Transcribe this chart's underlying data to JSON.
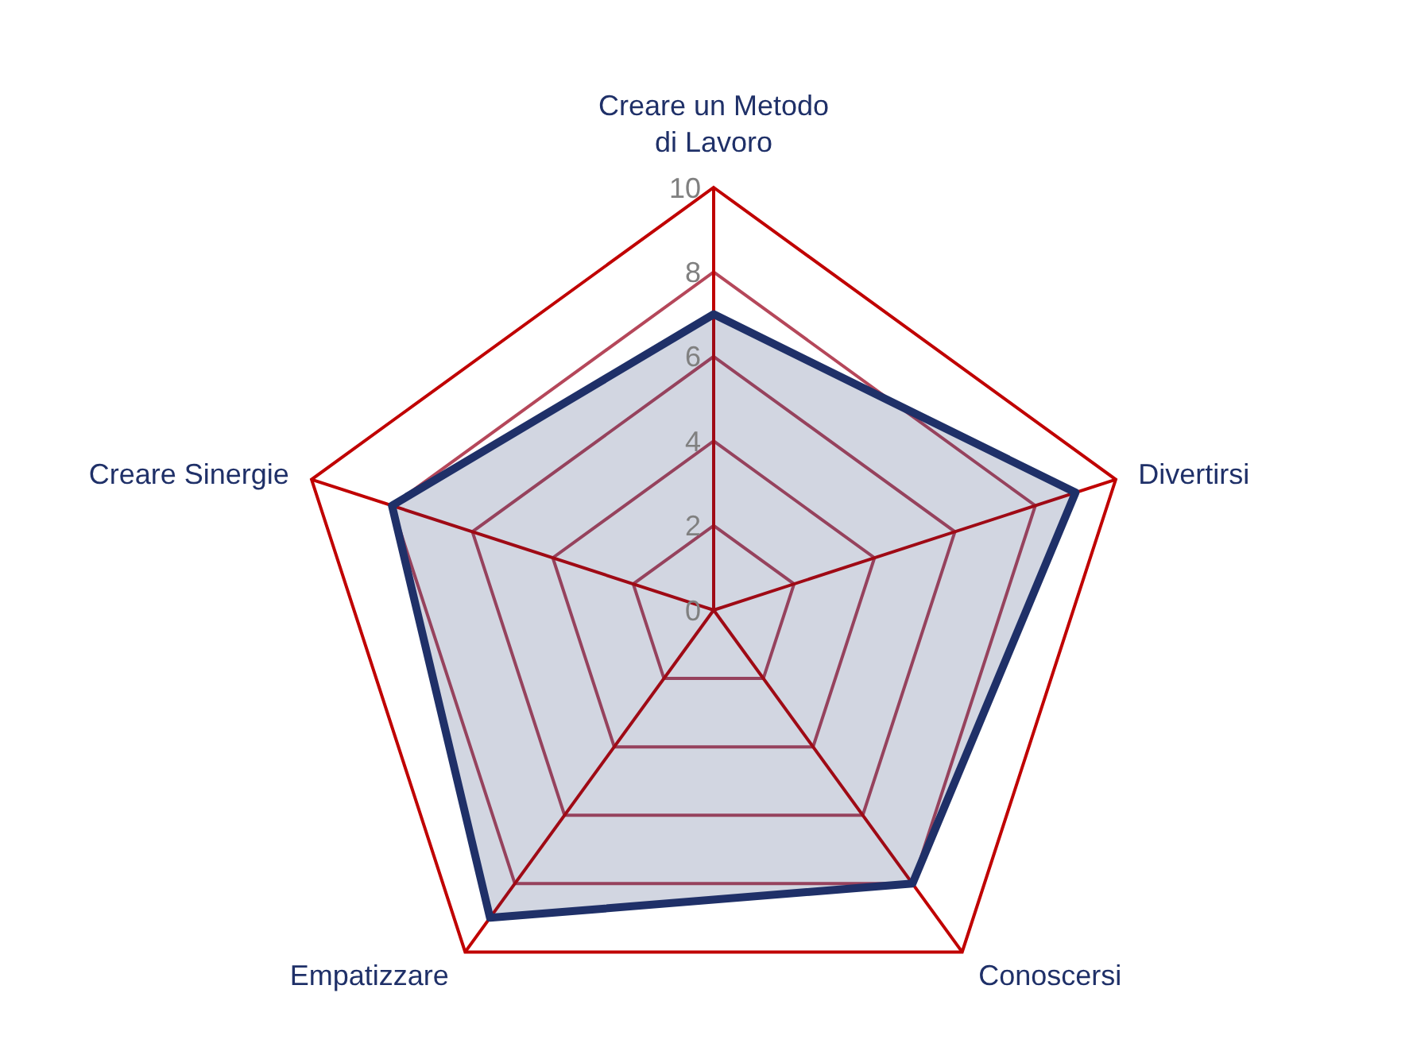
{
  "chart_data": {
    "type": "radar",
    "categories": [
      "Creare un Metodo di Lavoro",
      "Divertirsi",
      "Conoscersi",
      "Empatizzare",
      "Creare Sinergie"
    ],
    "series": [
      {
        "color": "#1f3068",
        "values": [
          7,
          9,
          8,
          9,
          8
        ]
      }
    ],
    "ylim": [
      0,
      10
    ],
    "yticks": [
      0,
      2,
      4,
      6,
      8,
      10
    ],
    "grid": true
  }
}
